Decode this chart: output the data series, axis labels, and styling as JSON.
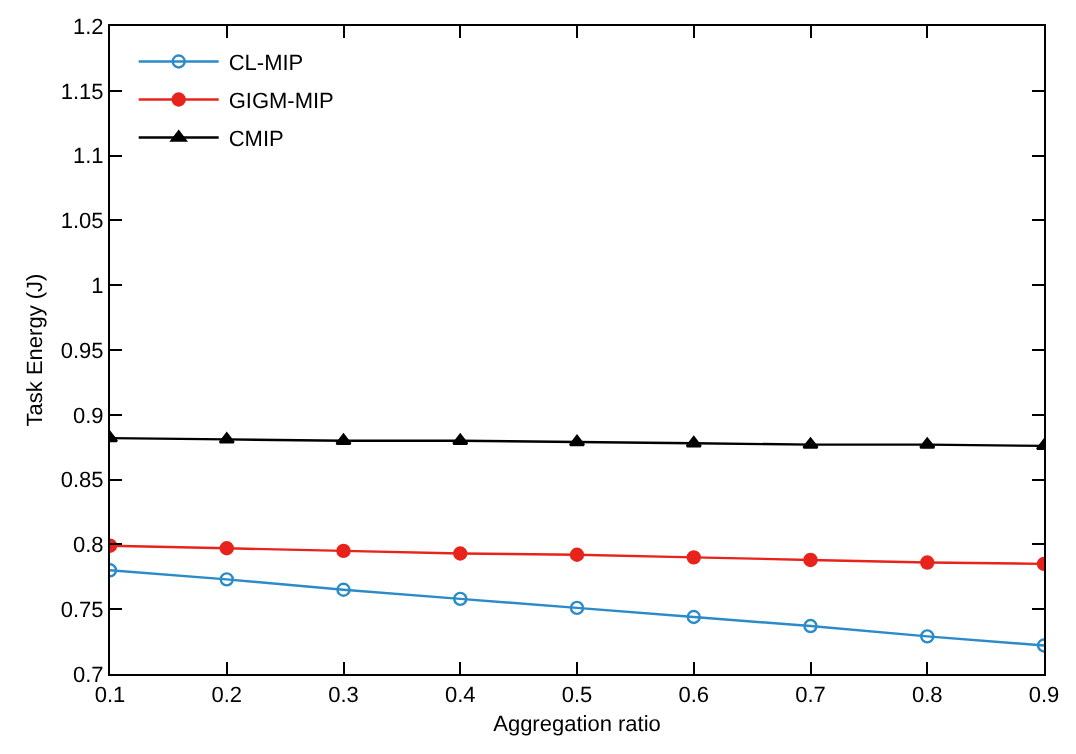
{
  "chart_data": {
    "type": "line",
    "xlabel": "Aggregation ratio",
    "ylabel": "Task Energy (J)",
    "x": [
      0.1,
      0.2,
      0.3,
      0.4,
      0.5,
      0.6,
      0.7,
      0.8,
      0.9
    ],
    "series": [
      {
        "name": "CL-MIP",
        "color": "#2a8bc8",
        "marker": "circle-open",
        "values": [
          0.78,
          0.773,
          0.765,
          0.758,
          0.751,
          0.744,
          0.737,
          0.729,
          0.722
        ]
      },
      {
        "name": "GIGM-MIP",
        "color": "#e8231b",
        "marker": "circle",
        "values": [
          0.799,
          0.797,
          0.795,
          0.793,
          0.792,
          0.79,
          0.788,
          0.786,
          0.785
        ]
      },
      {
        "name": "CMIP",
        "color": "#000000",
        "marker": "triangle",
        "values": [
          0.882,
          0.881,
          0.88,
          0.88,
          0.879,
          0.878,
          0.877,
          0.877,
          0.876
        ]
      }
    ],
    "xlim": [
      0.1,
      0.9
    ],
    "xticks": [
      0.1,
      0.2,
      0.3,
      0.4,
      0.5,
      0.6,
      0.7,
      0.8,
      0.9
    ],
    "ylim": [
      0.7,
      1.2
    ],
    "yticks": [
      0.7,
      0.75,
      0.8,
      0.85,
      0.9,
      0.95,
      1,
      1.05,
      1.1,
      1.15,
      1.2
    ],
    "legend": "top left",
    "line_style": "solid"
  }
}
